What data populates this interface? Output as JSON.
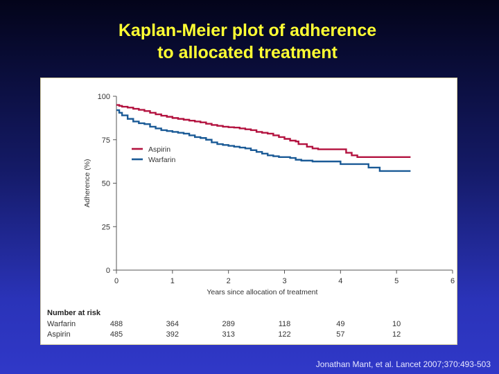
{
  "slide": {
    "title_line1": "Kaplan-Meier plot of adherence",
    "title_line2": "to allocated treatment",
    "citation": "Jonathan Mant, et al. Lancet 2007;370:493-503"
  },
  "colors": {
    "title": "#ffff33",
    "aspirin": "#b3123f",
    "warfarin": "#1a5a96"
  },
  "chart_data": {
    "type": "line",
    "xlabel": "Years since allocation of treatment",
    "ylabel": "Adherence (%)",
    "xlim": [
      0,
      6
    ],
    "ylim": [
      0,
      100
    ],
    "x_ticks": [
      0,
      1,
      2,
      3,
      4,
      5,
      6
    ],
    "y_ticks": [
      0,
      25,
      50,
      75,
      100
    ],
    "grid": false,
    "legend_position": "upper-left",
    "series": [
      {
        "name": "Aspirin",
        "color": "#b3123f",
        "x": [
          0,
          0.05,
          0.1,
          0.2,
          0.3,
          0.4,
          0.5,
          0.6,
          0.7,
          0.8,
          0.9,
          1.0,
          1.1,
          1.2,
          1.3,
          1.4,
          1.5,
          1.6,
          1.7,
          1.8,
          1.9,
          2.0,
          2.1,
          2.2,
          2.3,
          2.4,
          2.5,
          2.6,
          2.7,
          2.8,
          2.9,
          3.0,
          3.1,
          3.2,
          3.25,
          3.4,
          3.5,
          3.6,
          3.7,
          3.8,
          3.9,
          4.0,
          4.1,
          4.2,
          4.3,
          4.4,
          4.5,
          4.6,
          4.8,
          5.0,
          5.25
        ],
        "y": [
          95,
          94.5,
          94,
          93.5,
          92.8,
          92.2,
          91.5,
          90.5,
          89.6,
          88.8,
          88.2,
          87.5,
          87,
          86.5,
          86,
          85.5,
          85,
          84.2,
          83.5,
          83,
          82.5,
          82.2,
          82,
          81.5,
          81,
          80.5,
          79.5,
          79,
          78.5,
          77.5,
          76.5,
          75.5,
          74.5,
          74,
          72.5,
          71,
          70,
          69.5,
          69.5,
          69.5,
          69.5,
          69.5,
          67.5,
          66,
          65,
          65,
          65,
          65,
          65,
          65,
          65
        ]
      },
      {
        "name": "Warfarin",
        "color": "#1a5a96",
        "x": [
          0,
          0.05,
          0.1,
          0.2,
          0.3,
          0.4,
          0.5,
          0.6,
          0.7,
          0.8,
          0.9,
          1.0,
          1.1,
          1.2,
          1.3,
          1.4,
          1.5,
          1.6,
          1.7,
          1.8,
          1.9,
          2.0,
          2.1,
          2.2,
          2.3,
          2.4,
          2.5,
          2.6,
          2.7,
          2.8,
          2.9,
          3.0,
          3.1,
          3.2,
          3.3,
          3.4,
          3.5,
          3.6,
          3.7,
          3.8,
          3.9,
          4.0,
          4.2,
          4.4,
          4.5,
          4.6,
          4.7,
          4.8,
          5.0,
          5.25
        ],
        "y": [
          92,
          90.5,
          89,
          87,
          85.5,
          84.5,
          84,
          82.5,
          81.5,
          80.5,
          80,
          79.5,
          79,
          78.5,
          77.5,
          76.5,
          76,
          75,
          73.5,
          72.5,
          72,
          71.5,
          71,
          70.5,
          70,
          69,
          68,
          67,
          66,
          65.5,
          65,
          65,
          64.5,
          63.5,
          63,
          63,
          62.5,
          62.5,
          62.5,
          62.5,
          62.5,
          61,
          61,
          61,
          59,
          59,
          57,
          57,
          57,
          57
        ]
      }
    ],
    "risk_table": {
      "title": "Number at risk",
      "rows": [
        {
          "label": "Warfarin",
          "values": [
            "488",
            "364",
            "289",
            "118",
            "49",
            "10"
          ]
        },
        {
          "label": "Aspirin",
          "values": [
            "485",
            "392",
            "313",
            "122",
            "57",
            "12"
          ]
        }
      ]
    }
  }
}
